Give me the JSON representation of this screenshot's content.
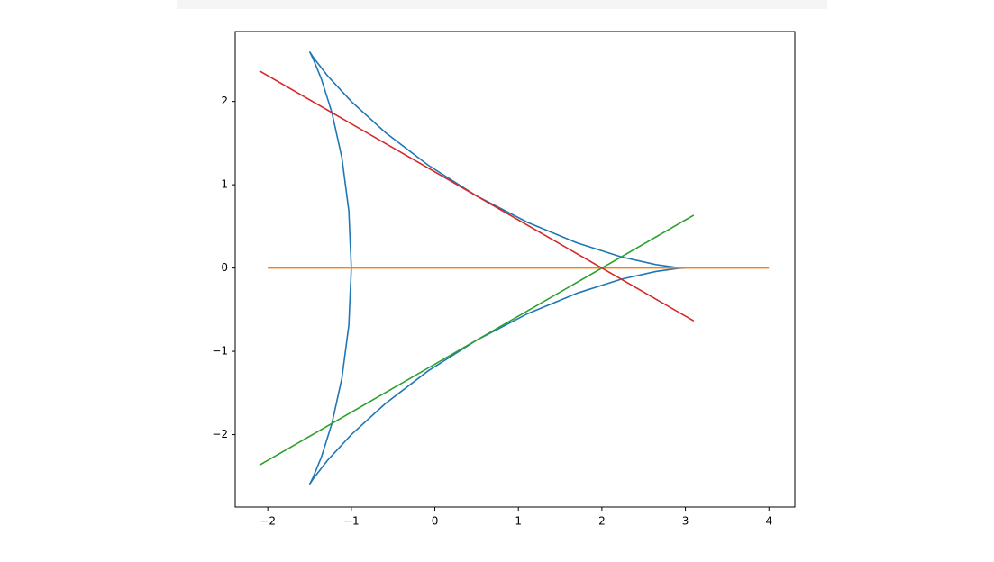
{
  "chart_data": {
    "type": "line",
    "xlim": [
      -2.39,
      4.31
    ],
    "ylim": [
      -2.87,
      2.84
    ],
    "xticks": [
      {
        "value": -2,
        "label": "−2"
      },
      {
        "value": -1,
        "label": "−1"
      },
      0,
      1,
      2,
      3,
      4
    ],
    "yticks": [
      {
        "value": -2,
        "label": "−2"
      },
      {
        "value": -1,
        "label": "−1"
      },
      0,
      1,
      2
    ],
    "grid": false,
    "series": [
      {
        "color": "#1f77b4",
        "x": [
          3,
          2.9093,
          2.6454,
          2.2321,
          1.7057,
          1.112,
          0.5,
          -0.082,
          -0.5924,
          -1,
          -1.287,
          -1.45,
          -1.5,
          -1.4592,
          -1.3585,
          -1.2321,
          -1.1134,
          -1.0299,
          -1,
          -1.0299,
          -1.1134,
          -1.2321,
          -1.3585,
          -1.4592,
          -1.5,
          -1.45,
          -1.287,
          -1,
          -0.5924,
          -0.082,
          0.5,
          1.112,
          1.7057,
          2.2321,
          2.6454,
          2.9093,
          3
        ],
        "values": [
          0,
          0.0053,
          0.0412,
          0.134,
          0.3008,
          0.5473,
          0.8661,
          1.2366,
          1.6276,
          2,
          2.3116,
          2.5222,
          2.5981,
          2.5169,
          2.2704,
          1.866,
          1.3268,
          0.6893,
          0,
          -0.6893,
          -1.3268,
          -1.866,
          -2.2704,
          -2.5169,
          -2.5981,
          -2.5222,
          -2.3116,
          -2,
          -1.6276,
          -1.2366,
          -0.8661,
          -0.5473,
          -0.3008,
          -0.134,
          -0.0412,
          -0.0053,
          0
        ]
      },
      {
        "color": "#ff7f0e",
        "x": [
          -2,
          4
        ],
        "values": [
          0,
          0
        ]
      },
      {
        "color": "#2ca02c",
        "x": [
          -2.1,
          3.1
        ],
        "values": [
          -2.367,
          0.635
        ]
      },
      {
        "color": "#d62728",
        "x": [
          -2.1,
          3.1
        ],
        "values": [
          2.367,
          -0.635
        ]
      }
    ]
  }
}
